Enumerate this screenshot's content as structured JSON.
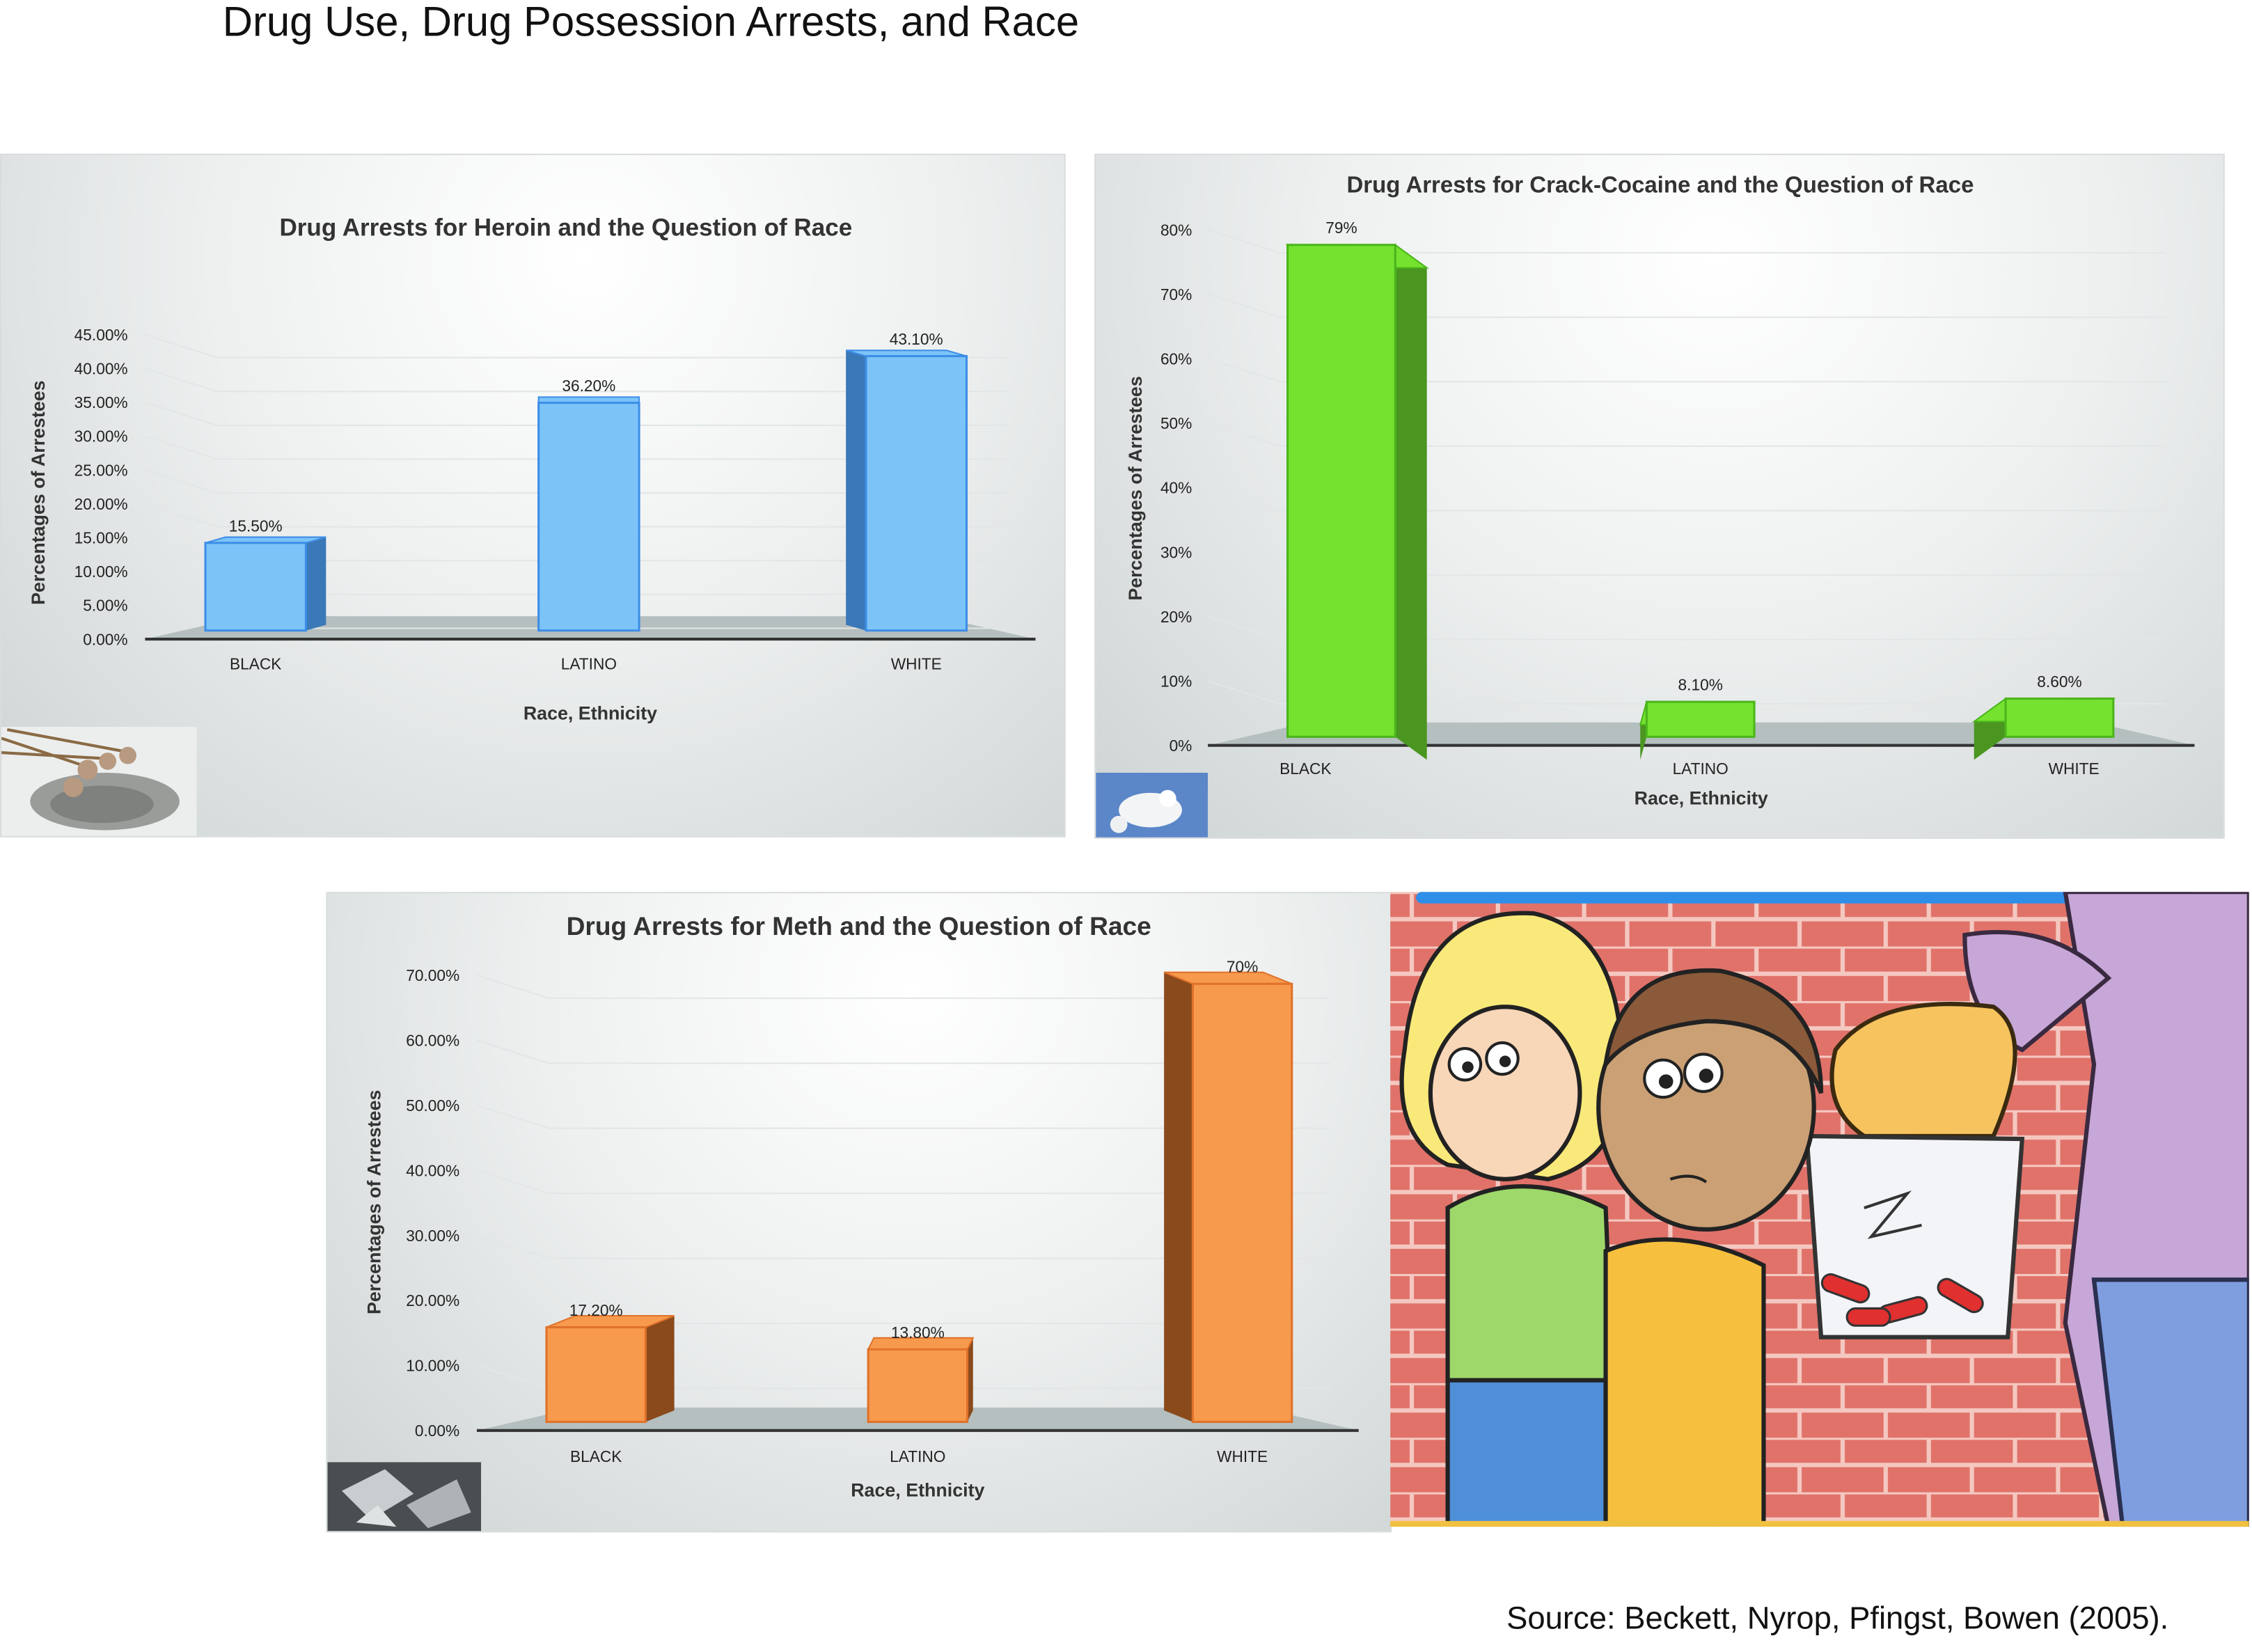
{
  "page_title": "Drug Use, Drug Possession Arrests, and Race",
  "source": "Source: Beckett, Nyrop, Pfingst, Bowen (2005).",
  "chart_data": [
    {
      "type": "bar",
      "title": "Drug Arrests for Heroin and the Question of Race",
      "xlabel": "Race, Ethnicity",
      "ylabel": "Percentages of Arrestees",
      "categories": [
        "BLACK",
        "LATINO",
        "WHITE"
      ],
      "values": [
        15.5,
        36.2,
        43.1
      ],
      "data_labels": [
        "15.50%",
        "36.20%",
        "43.10%"
      ],
      "ylim": [
        0,
        45
      ],
      "ticks": [
        "0.00%",
        "5.00%",
        "10.00%",
        "15.00%",
        "20.00%",
        "25.00%",
        "30.00%",
        "35.00%",
        "40.00%",
        "45.00%"
      ],
      "color": "#7cc4f8",
      "side_color": "#3a78b8",
      "edge_color": "#3d8ee6",
      "grid": true,
      "thumbnail": "poppy-seed-icon"
    },
    {
      "type": "bar",
      "title": "Drug Arrests for Crack-Cocaine and the Question of Race",
      "xlabel": "Race, Ethnicity",
      "ylabel": "Percentages of Arrestees",
      "categories": [
        "BLACK",
        "LATINO",
        "WHITE"
      ],
      "values": [
        79,
        8.1,
        8.6
      ],
      "data_labels": [
        "79%",
        "8.10%",
        "8.60%"
      ],
      "ylim": [
        0,
        80
      ],
      "ticks": [
        "0%",
        "10%",
        "20%",
        "30%",
        "40%",
        "50%",
        "60%",
        "70%",
        "80%"
      ],
      "color": "#74e22f",
      "side_color": "#4a9620",
      "edge_color": "#4bb51c",
      "grid": true,
      "thumbnail": "cocaine-powder-icon"
    },
    {
      "type": "bar",
      "title": "Drug Arrests for Meth and the Question of Race",
      "xlabel": "Race, Ethnicity",
      "ylabel": "Percentages of Arrestees",
      "categories": [
        "BLACK",
        "LATINO",
        "WHITE"
      ],
      "values": [
        17.2,
        13.8,
        70
      ],
      "data_labels": [
        "17.20%",
        "13.80%",
        "70%"
      ],
      "ylim": [
        0,
        70
      ],
      "ticks": [
        "0.00%",
        "10.00%",
        "20.00%",
        "30.00%",
        "40.00%",
        "50.00%",
        "60.00%",
        "70.00%"
      ],
      "color": "#f79a4e",
      "side_color": "#8a4a1c",
      "edge_color": "#e0722a",
      "grid": true,
      "thumbnail": "meth-crystal-icon"
    }
  ]
}
